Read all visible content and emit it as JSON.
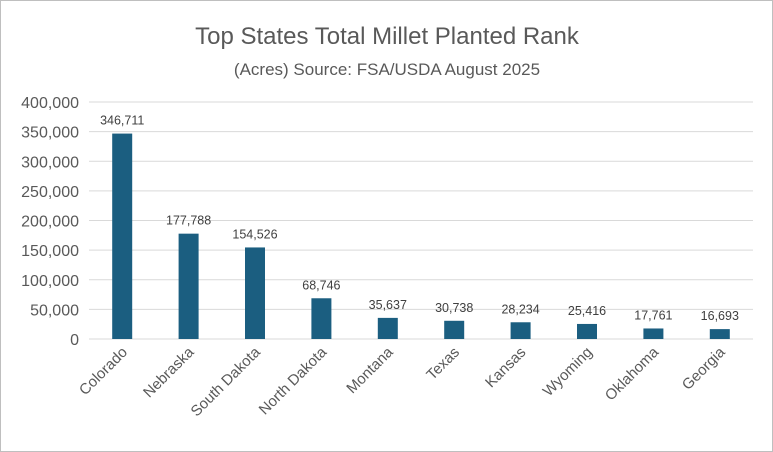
{
  "chart_data": {
    "type": "bar",
    "title": "Top States Total Millet Planted Rank",
    "subtitle": "(Acres) Source: FSA/USDA August 2025",
    "xlabel": "",
    "ylabel": "",
    "categories": [
      "Colorado",
      "Nebraska",
      "South Dakota",
      "North Dakota",
      "Montana",
      "Texas",
      "Kansas",
      "Wyoming",
      "Oklahoma",
      "Georgia"
    ],
    "values": [
      346711,
      177788,
      154526,
      68746,
      35637,
      30738,
      28234,
      25416,
      17761,
      16693
    ],
    "data_labels": [
      "346,711",
      "177,788",
      "154,526",
      "68,746",
      "35,637",
      "30,738",
      "28,234",
      "25,416",
      "17,761",
      "16,693"
    ],
    "ylim": [
      0,
      400000
    ],
    "yticks": [
      0,
      50000,
      100000,
      150000,
      200000,
      250000,
      300000,
      350000,
      400000
    ],
    "ytick_labels": [
      "0",
      "50,000",
      "100,000",
      "150,000",
      "200,000",
      "250,000",
      "300,000",
      "350,000",
      "400,000"
    ],
    "grid": true,
    "legend": "none",
    "bar_color": "#1b5e80",
    "grid_color": "#d9d9d9"
  }
}
